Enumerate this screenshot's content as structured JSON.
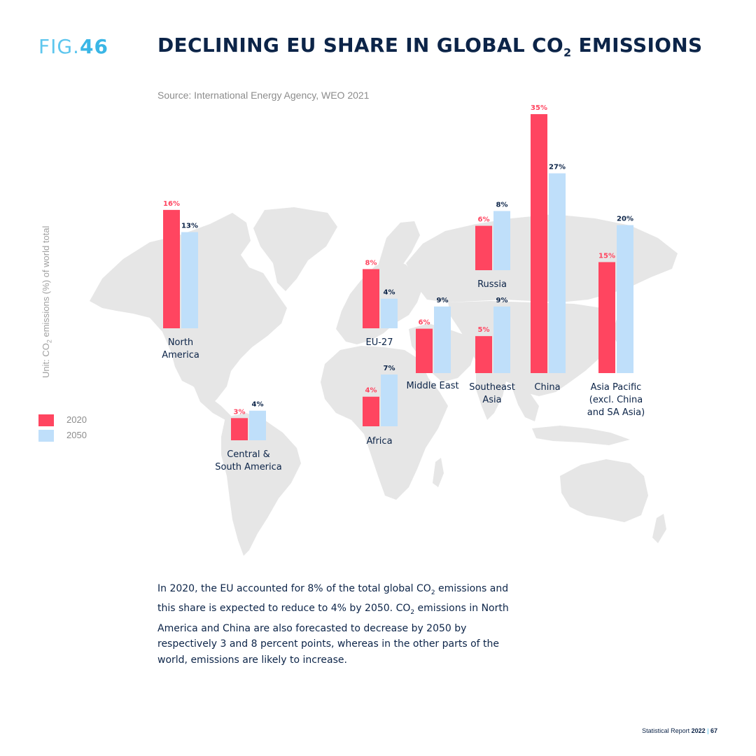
{
  "header": {
    "fig_prefix": "FIG.",
    "fig_number": "46",
    "title_part1": "DECLINING EU SHARE IN GLOBAL CO",
    "title_sub": "2",
    "title_part2": " EMISSIONS",
    "source": "Source: International Energy Agency, WEO 2021"
  },
  "axis": {
    "unit_part1": "Unit: CO",
    "unit_sub": "2",
    "unit_part2": " emissions (%) of world total"
  },
  "legend": [
    {
      "label": "2020",
      "color": "#ff4560"
    },
    {
      "label": "2050",
      "color": "#bfdffa"
    }
  ],
  "colors": {
    "s2020": "#ff4560",
    "s2050": "#bfdffa",
    "map": "#e6e6e6",
    "label2020": "#ff4560",
    "label2050": "#0c2448",
    "region": "#0c2448"
  },
  "chart_data": {
    "type": "bar",
    "categories": [
      "North America",
      "Central & South America",
      "EU-27",
      "Africa",
      "Middle East",
      "Russia",
      "Southeast Asia",
      "China",
      "Asia Pacific (excl. China and SA Asia)"
    ],
    "series": [
      {
        "name": "2020",
        "values": [
          16,
          3,
          8,
          4,
          6,
          6,
          5,
          35,
          15
        ]
      },
      {
        "name": "2050",
        "values": [
          13,
          4,
          4,
          7,
          9,
          8,
          9,
          27,
          20
        ]
      }
    ],
    "value_labels_2020": [
      "16%",
      "3%",
      "8%",
      "4%",
      "6%",
      "6%",
      "5%",
      "35%",
      "15%"
    ],
    "value_labels_2050": [
      "13%",
      "4%",
      "4%",
      "7%",
      "9%",
      "8%",
      "9%",
      "27%",
      "20%"
    ],
    "region_labels": [
      [
        "North",
        "America"
      ],
      [
        "Central &",
        "South America"
      ],
      [
        "EU-27"
      ],
      [
        "Africa"
      ],
      [
        "Middle East"
      ],
      [
        "Russia"
      ],
      [
        "Southeast",
        "Asia"
      ],
      [
        "China"
      ],
      [
        "Asia Pacific",
        "(excl. China",
        "and SA Asia)"
      ]
    ]
  },
  "paragraph": {
    "p1": "In 2020, the EU accounted for 8% of the total global CO",
    "s1": "2",
    "p2": " emissions and this share is expected to reduce to 4% by 2050. CO",
    "s2": "2",
    "p3": " emissions in North America and China are also forecasted to decrease by 2050 by respectively 3 and 8 percent points, whereas in the other parts of the world, emissions are likely to increase."
  },
  "footer": {
    "report": "Statistical Report ",
    "year": "2022",
    "sep": " | ",
    "page": "67"
  }
}
